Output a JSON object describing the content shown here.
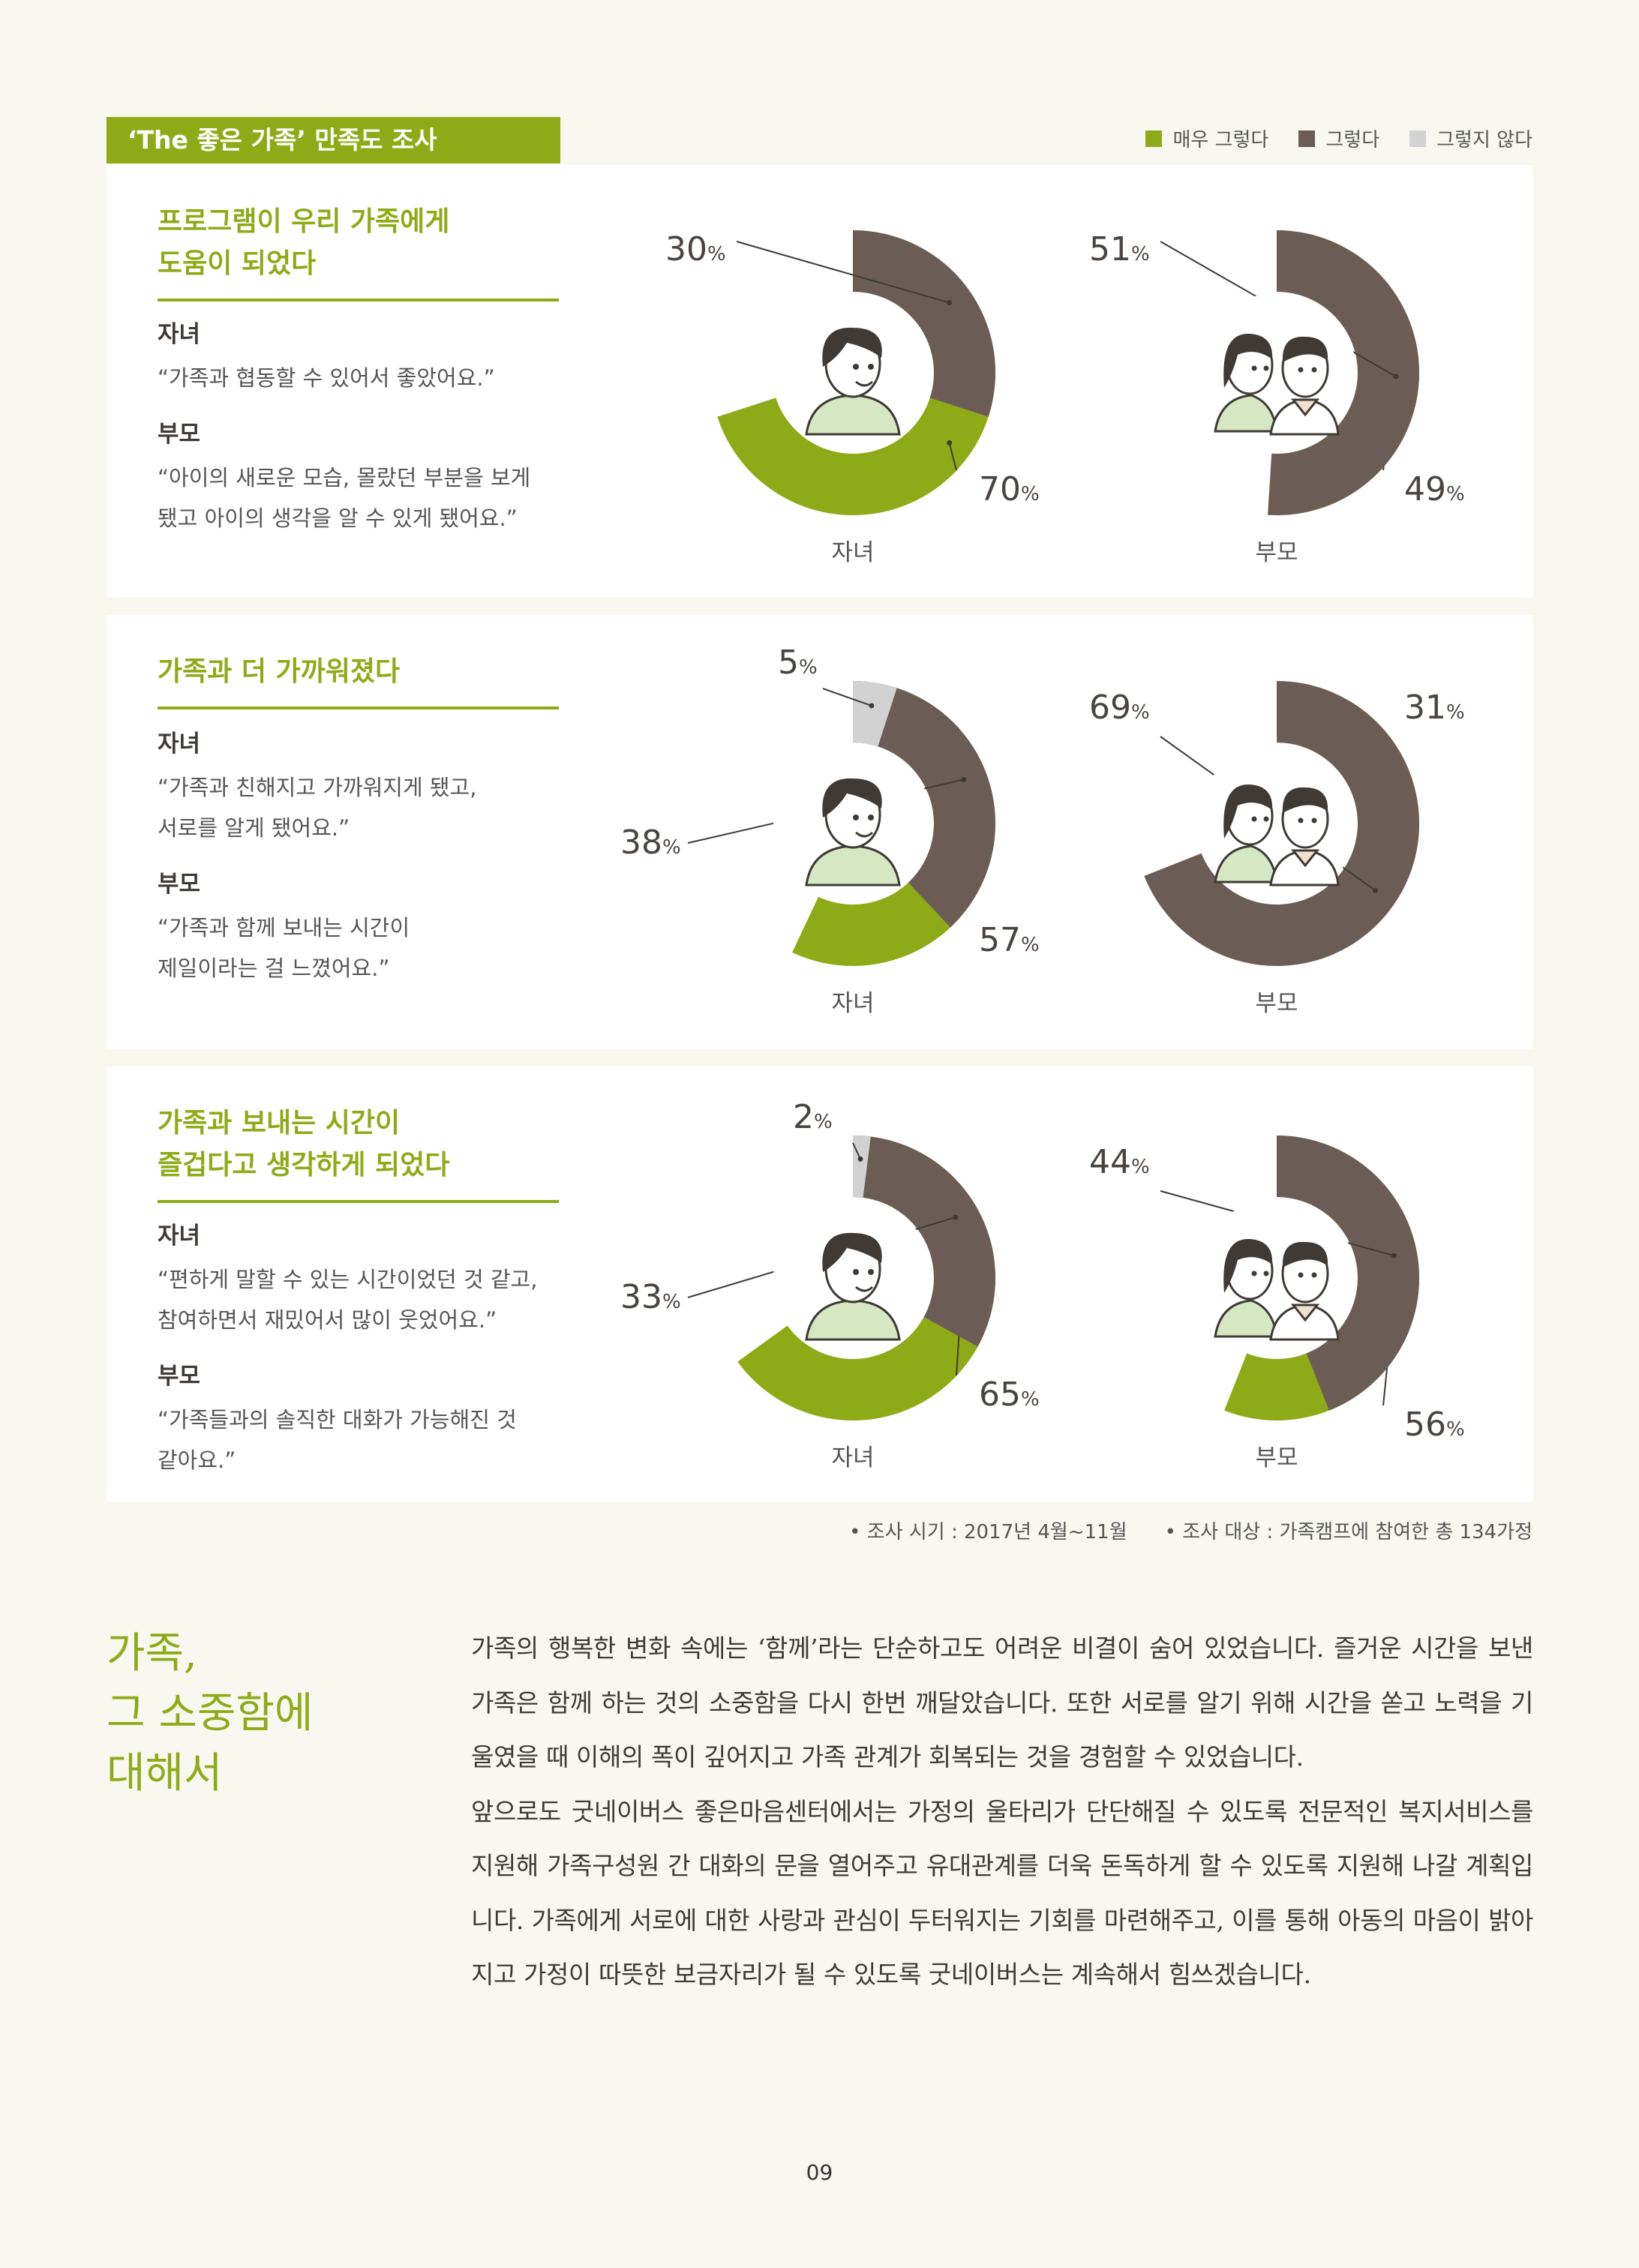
{
  "header": {
    "title": "‘The 좋은 가족’ 만족도 조사",
    "legend": [
      {
        "label": "매우 그렇다",
        "color": "#8eab17"
      },
      {
        "label": "그렇다",
        "color": "#6b5d56"
      },
      {
        "label": "그렇지 않다",
        "color": "#d2d2d2"
      }
    ]
  },
  "panels": [
    {
      "heading": "프로그램이 우리 가족에게\n도움이 되었다",
      "child_label": "자녀",
      "child_quote": "“가족과 협동할 수 있어서 좋았어요.”",
      "parent_label": "부모",
      "parent_quote": "“아이의 새로운 모습, 몰랐던 부분을 보게\n 됐고 아이의 생각을 알 수 있게 됐어요.”"
    },
    {
      "heading": "가족과 더 가까워졌다",
      "child_label": "자녀",
      "child_quote": "“가족과 친해지고 가까워지게 됐고,\n 서로를 알게 됐어요.”",
      "parent_label": "부모",
      "parent_quote": "“가족과 함께 보내는 시간이\n 제일이라는 걸 느꼈어요.”"
    },
    {
      "heading": "가족과 보내는 시간이\n즐겁다고 생각하게 되었다",
      "child_label": "자녀",
      "child_quote": "“편하게 말할 수 있는 시간이었던 것 같고,\n 참여하면서 재밌어서 많이 웃었어요.”",
      "parent_label": "부모",
      "parent_quote": "“가족들과의 솔직한 대화가 가능해진 것\n 같아요.”"
    }
  ],
  "chart_data": [
    {
      "type": "pie",
      "title": "자녀",
      "labels": [
        "매우 그렇다",
        "그렇다"
      ],
      "values": [
        70,
        30
      ]
    },
    {
      "type": "pie",
      "title": "부모",
      "labels": [
        "매우 그렇다",
        "그렇다"
      ],
      "values": [
        49,
        51
      ]
    },
    {
      "type": "pie",
      "title": "자녀",
      "labels": [
        "매우 그렇다",
        "그렇다",
        "그렇지 않다"
      ],
      "values": [
        57,
        38,
        5
      ]
    },
    {
      "type": "pie",
      "title": "부모",
      "labels": [
        "매우 그렇다",
        "그렇다"
      ],
      "values": [
        31,
        69
      ]
    },
    {
      "type": "pie",
      "title": "자녀",
      "labels": [
        "매우 그렇다",
        "그렇다",
        "그렇지 않다"
      ],
      "values": [
        65,
        33,
        2
      ]
    },
    {
      "type": "pie",
      "title": "부모",
      "labels": [
        "매우 그렇다",
        "그렇다"
      ],
      "values": [
        56,
        44
      ]
    }
  ],
  "footnote": {
    "period": "• 조사 시기 : 2017년 4월~11월",
    "target": "• 조사 대상 : 가족캠프에 참여한 총 134가정"
  },
  "essay": {
    "title": "가족,\n그 소중함에\n대해서",
    "paragraph1": "가족의 행복한 변화 속에는 ‘함께’라는 단순하고도 어려운 비결이 숨어 있었습니다. 즐거운 시간을 보낸 가족은 함께 하는 것의 소중함을 다시 한번 깨달았습니다. 또한 서로를 알기 위해 시간을 쏟고 노력을 기울였을 때 이해의 폭이 깊어지고 가족 관계가 회복되는 것을 경험할 수 있었습니다.",
    "paragraph2": "앞으로도 굿네이버스 좋은마음센터에서는 가정의 울타리가 단단해질 수 있도록 전문적인 복지서비스를 지원해 가족구성원 간 대화의 문을 열어주고 유대관계를 더욱 돈독하게 할 수 있도록 지원해 나갈 계획입니다. 가족에게 서로에 대한 사랑과 관심이 두터워지는 기회를 마련해주고, 이를 통해 아동의 마음이 밝아지고 가정이 따뜻한 보금자리가 될 수 있도록 굿네이버스는 계속해서 힘쓰겠습니다."
  },
  "page_number": "09"
}
